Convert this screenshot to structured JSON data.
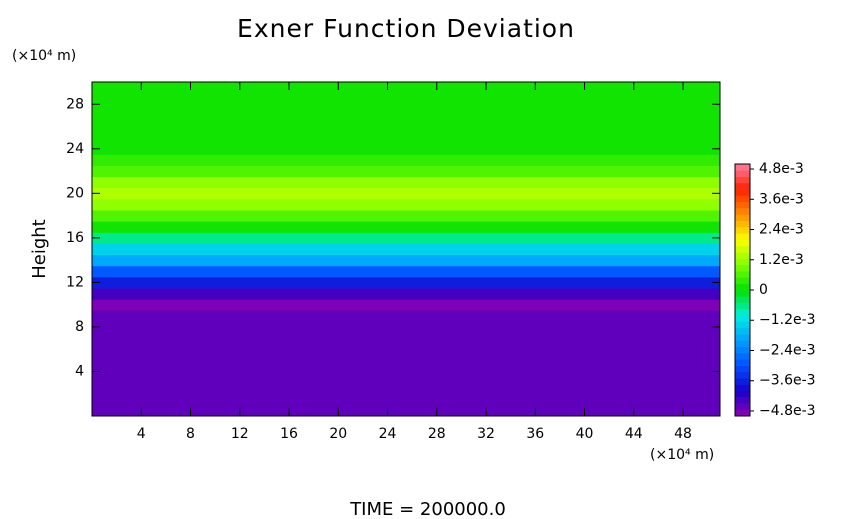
{
  "chart_data": {
    "type": "contour-profile",
    "title": "Exner Function Deviation",
    "y_label": "Height",
    "x_unit": "(×10⁴ m)",
    "y_unit": "(×10⁴ m)",
    "annotation": "TIME = 200000.0",
    "xlim": [
      0,
      51
    ],
    "xticks": [
      4,
      8,
      12,
      16,
      20,
      24,
      28,
      32,
      36,
      40,
      44,
      48
    ],
    "ylim": [
      0,
      30
    ],
    "yticks": [
      4,
      8,
      12,
      16,
      20,
      24,
      28
    ],
    "y": [
      0,
      1,
      2,
      3,
      4,
      5,
      6,
      7,
      8,
      9,
      10,
      11,
      12,
      13,
      14,
      15,
      16,
      17,
      18,
      19,
      20,
      21,
      22,
      23,
      24,
      25,
      26,
      27,
      28,
      29,
      30
    ],
    "values": [
      -0.0047,
      -0.0046,
      -0.0046,
      -0.0046,
      -0.0046,
      -0.0046,
      -0.0046,
      -0.0046,
      -0.0046,
      -0.0047,
      -0.0049,
      -0.0043,
      -0.0036,
      -0.0028,
      -0.002,
      -0.0013,
      -0.0006,
      0.0,
      0.0006,
      0.0011,
      0.0014,
      0.0011,
      0.0006,
      0.0003,
      0.0002,
      0.0001,
      0.0001,
      0.0001,
      0.0001,
      0.0001,
      0.0001
    ],
    "clim": [
      -0.005,
      0.005
    ],
    "colormap": [
      "#8c00b4",
      "#1800c8",
      "#0050ff",
      "#00a0ff",
      "#00f0e0",
      "#00e000",
      "#80ff00",
      "#ffff00",
      "#ff9000",
      "#ff2000",
      "#ff80a0"
    ],
    "cticks": [
      {
        "value": 0.0048,
        "label": "4.8e-3"
      },
      {
        "value": 0.0036,
        "label": "3.6e-3"
      },
      {
        "value": 0.0024,
        "label": "2.4e-3"
      },
      {
        "value": 0.0012,
        "label": "1.2e-3"
      },
      0,
      {
        "value": -0.0012,
        "label": "−1.2e-3"
      },
      {
        "value": -0.0024,
        "label": "−2.4e-3"
      },
      {
        "value": -0.0036,
        "label": "−3.6e-3"
      },
      {
        "value": -0.0048,
        "label": "−4.8e-3"
      }
    ]
  }
}
